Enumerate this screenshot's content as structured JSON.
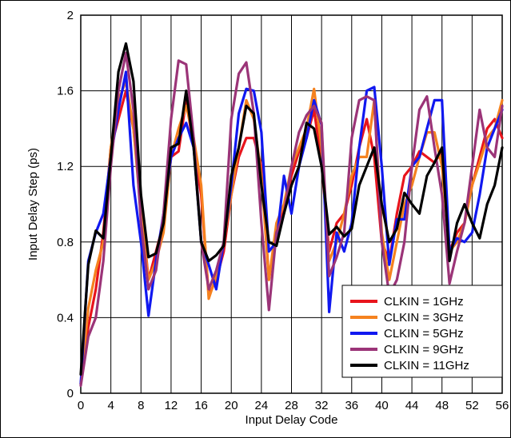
{
  "chart_data": {
    "type": "line",
    "xlabel": "Input Delay Code",
    "ylabel": "Input Delay Step (ps)",
    "xlim": [
      0,
      56
    ],
    "ylim": [
      0,
      2
    ],
    "xticks": [
      0,
      4,
      8,
      12,
      16,
      20,
      24,
      28,
      32,
      36,
      40,
      44,
      48,
      52,
      56
    ],
    "yticks": [
      0,
      0.4,
      0.8,
      1.2,
      1.6,
      2
    ],
    "ytick_labels": [
      "0",
      "0.4",
      "0.8",
      "1.2",
      "1.6",
      "2"
    ],
    "grid": true,
    "legend_position": "bottom-right",
    "series": [
      {
        "name": "CLKIN = 1GHz",
        "color": "#e8141c",
        "values": [
          0.05,
          0.35,
          0.55,
          0.85,
          1.3,
          1.45,
          1.6,
          1.4,
          1.0,
          0.6,
          0.75,
          0.9,
          1.25,
          1.28,
          1.55,
          1.3,
          1.05,
          0.52,
          0.6,
          0.75,
          1.05,
          1.25,
          1.35,
          1.35,
          1.2,
          0.6,
          0.85,
          0.98,
          1.15,
          1.28,
          1.35,
          1.5,
          1.22,
          0.75,
          0.9,
          0.95,
          1.1,
          1.3,
          1.45,
          1.25,
          0.8,
          0.7,
          0.95,
          1.15,
          1.2,
          1.28,
          1.25,
          1.22,
          1.28,
          0.75,
          0.85,
          0.9,
          1.1,
          1.25,
          1.4,
          1.45,
          1.35
        ]
      },
      {
        "name": "CLKIN = 3GHz",
        "color": "#f5821f",
        "values": [
          0.05,
          0.45,
          0.65,
          0.8,
          1.3,
          1.55,
          1.65,
          1.4,
          0.95,
          0.6,
          0.7,
          0.85,
          1.25,
          1.4,
          1.52,
          1.35,
          1.1,
          0.5,
          0.62,
          0.8,
          1.05,
          1.3,
          1.55,
          1.45,
          1.15,
          0.6,
          0.9,
          1.0,
          1.2,
          1.3,
          1.4,
          1.61,
          1.3,
          0.7,
          0.8,
          0.95,
          1.15,
          1.25,
          1.25,
          1.55,
          0.85,
          0.6,
          0.8,
          1.0,
          1.1,
          1.25,
          1.38,
          1.38,
          1.2,
          0.75,
          0.8,
          0.9,
          1.1,
          1.22,
          1.35,
          1.4,
          1.55
        ]
      },
      {
        "name": "CLKIN = 5GHz",
        "color": "#1018f0",
        "values": [
          0.05,
          0.7,
          0.85,
          0.95,
          1.25,
          1.5,
          1.7,
          1.1,
          0.8,
          0.41,
          0.7,
          0.95,
          1.25,
          1.35,
          1.43,
          1.3,
          0.8,
          0.68,
          0.55,
          0.8,
          1.1,
          1.48,
          1.61,
          1.6,
          1.38,
          0.75,
          0.8,
          1.15,
          0.95,
          1.2,
          1.35,
          1.55,
          1.42,
          0.43,
          0.85,
          0.75,
          0.9,
          1.3,
          1.6,
          1.62,
          1.2,
          0.68,
          0.92,
          0.92,
          1.2,
          1.25,
          1.4,
          1.55,
          1.55,
          0.75,
          0.82,
          0.8,
          0.85,
          1.05,
          1.3,
          1.4,
          1.5
        ]
      },
      {
        "name": "CLKIN = 9GHz",
        "color": "#9b3478",
        "values": [
          0.04,
          0.3,
          0.4,
          0.7,
          1.2,
          1.6,
          1.8,
          1.5,
          0.9,
          0.55,
          0.65,
          0.95,
          1.45,
          1.76,
          1.74,
          1.35,
          0.8,
          0.55,
          0.65,
          0.8,
          1.45,
          1.69,
          1.75,
          1.48,
          0.9,
          0.44,
          0.85,
          0.95,
          1.2,
          1.38,
          1.47,
          1.52,
          1.43,
          0.62,
          0.72,
          0.85,
          1.35,
          1.55,
          1.57,
          1.55,
          0.8,
          0.52,
          0.6,
          0.8,
          1.2,
          1.5,
          1.57,
          1.3,
          1.05,
          0.58,
          0.75,
          0.9,
          1.2,
          1.5,
          1.3,
          1.25,
          1.52
        ]
      },
      {
        "name": "CLKIN = 11GHz",
        "color": "#000000",
        "values": [
          0.1,
          0.68,
          0.86,
          0.82,
          1.25,
          1.7,
          1.85,
          1.65,
          1.05,
          0.72,
          0.74,
          0.9,
          1.3,
          1.32,
          1.6,
          1.3,
          0.8,
          0.7,
          0.73,
          0.78,
          1.15,
          1.3,
          1.52,
          1.48,
          1.1,
          0.8,
          0.78,
          0.95,
          1.1,
          1.2,
          1.43,
          1.4,
          1.2,
          0.84,
          0.88,
          0.83,
          0.87,
          1.1,
          1.2,
          1.3,
          1.0,
          0.8,
          0.87,
          1.06,
          1.0,
          0.95,
          1.15,
          1.22,
          1.3,
          0.7,
          0.9,
          1.0,
          0.9,
          0.82,
          1.0,
          1.1,
          1.3
        ]
      }
    ]
  }
}
